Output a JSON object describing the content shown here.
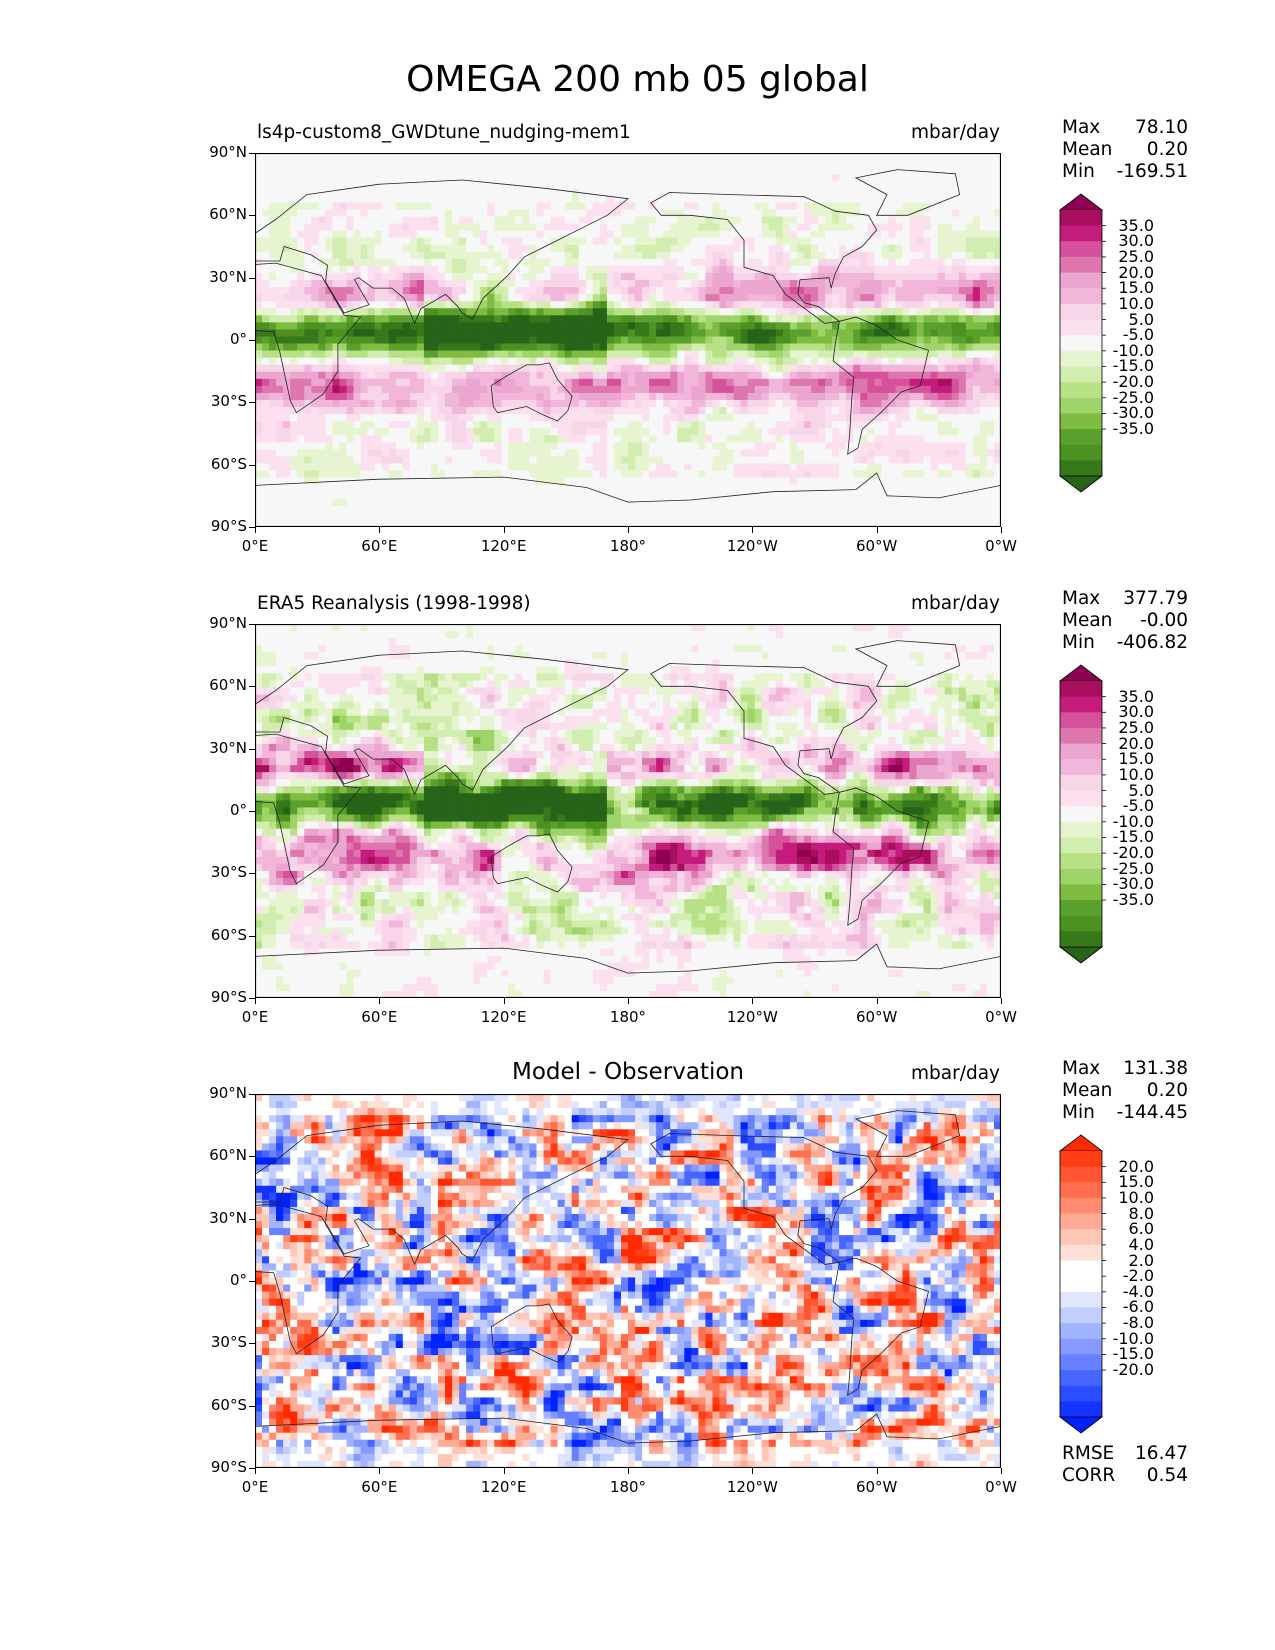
{
  "figure": {
    "title": "OMEGA 200 mb 05 global"
  },
  "chart_data": [
    {
      "type": "heatmap",
      "title": "ls4p-custom8_GWDtune_nudging-mem1",
      "units": "mbar/day",
      "xlabels": [
        "0°E",
        "60°E",
        "120°E",
        "180°",
        "120°W",
        "60°W",
        "0°W"
      ],
      "ylabels": [
        "90°N",
        "60°N",
        "30°N",
        "0°",
        "30°S",
        "60°S",
        "90°S"
      ],
      "stats": {
        "max": "78.10",
        "mean": "0.20",
        "min": "-169.51"
      },
      "colorbar_labels": [
        "35.0",
        "30.0",
        "25.0",
        "20.0",
        "15.0",
        "10.0",
        "5.0",
        "-5.0",
        "-10.0",
        "-15.0",
        "-20.0",
        "-25.0",
        "-30.0",
        "-35.0"
      ],
      "colormap": "PiYG_r",
      "colors": [
        "#8e0152",
        "#a70f5c",
        "#c51b7d",
        "#d6519c",
        "#de77ae",
        "#eba6cf",
        "#f1b6da",
        "#f8d6e9",
        "#fde0ef",
        "#f7f7f7",
        "#e6f5d0",
        "#d2edb0",
        "#b8e186",
        "#9fd46b",
        "#7fbc41",
        "#5aa02d",
        "#4d9221",
        "#37791a",
        "#276419"
      ]
    },
    {
      "type": "heatmap",
      "title": "ERA5 Reanalysis (1998-1998)",
      "units": "mbar/day",
      "xlabels": [
        "0°E",
        "60°E",
        "120°E",
        "180°",
        "120°W",
        "60°W",
        "0°W"
      ],
      "ylabels": [
        "90°N",
        "60°N",
        "30°N",
        "0°",
        "30°S",
        "60°S",
        "90°S"
      ],
      "stats": {
        "max": "377.79",
        "mean": "-0.00",
        "min": "-406.82"
      },
      "colorbar_labels": [
        "35.0",
        "30.0",
        "25.0",
        "20.0",
        "15.0",
        "10.0",
        "5.0",
        "-5.0",
        "-10.0",
        "-15.0",
        "-20.0",
        "-25.0",
        "-30.0",
        "-35.0"
      ],
      "colormap": "PiYG_r",
      "colors": [
        "#8e0152",
        "#a70f5c",
        "#c51b7d",
        "#d6519c",
        "#de77ae",
        "#eba6cf",
        "#f1b6da",
        "#f8d6e9",
        "#fde0ef",
        "#f7f7f7",
        "#e6f5d0",
        "#d2edb0",
        "#b8e186",
        "#9fd46b",
        "#7fbc41",
        "#5aa02d",
        "#4d9221",
        "#37791a",
        "#276419"
      ]
    },
    {
      "type": "heatmap",
      "title": "Model - Observation",
      "units": "mbar/day",
      "xlabels": [
        "0°E",
        "60°E",
        "120°E",
        "180°",
        "120°W",
        "60°W",
        "0°W"
      ],
      "ylabels": [
        "90°N",
        "60°N",
        "30°N",
        "0°",
        "30°S",
        "60°S",
        "90°S"
      ],
      "stats": {
        "max": "131.38",
        "mean": "0.20",
        "min": "-144.45",
        "rmse": "16.47",
        "corr": "0.54"
      },
      "colorbar_labels": [
        "20.0",
        "15.0",
        "10.0",
        "8.0",
        "6.0",
        "4.0",
        "2.0",
        "-2.0",
        "-4.0",
        "-6.0",
        "-8.0",
        "-10.0",
        "-15.0",
        "-20.0"
      ],
      "colormap": "bwr_r",
      "colors": [
        "#ff2a00",
        "#ff3d12",
        "#ff5533",
        "#ff6f4f",
        "#ff8c70",
        "#ffaa94",
        "#ffc7b8",
        "#ffe0d6",
        "#ffffff",
        "#ffffff",
        "#e0e6ff",
        "#c2ceff",
        "#a3b4ff",
        "#8599ff",
        "#6680ff",
        "#4766ff",
        "#2a4dff",
        "#1433ff",
        "#0022ff"
      ]
    }
  ],
  "labels": {
    "max": "Max",
    "mean": "Mean",
    "min": "Min",
    "rmse": "RMSE",
    "corr": "CORR"
  }
}
